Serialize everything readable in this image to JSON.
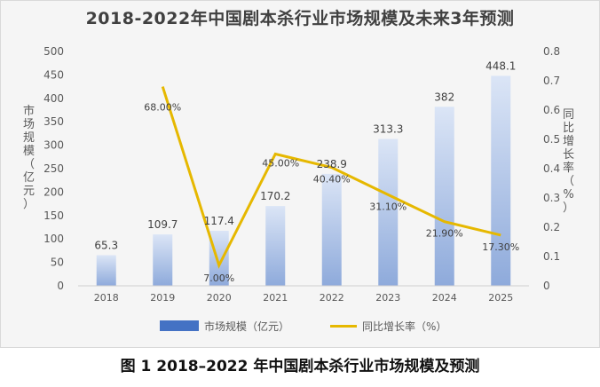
{
  "title": "2018-2022年中国剧本杀行业市场规模及未来3年预测",
  "caption": "图 1 2018–2022 年中国剧本杀行业市场规模及预测",
  "left_axis_label": "市场规模（亿元）",
  "right_axis_label": "同比增长率（%）",
  "legend": {
    "bar": "市场规模（亿元）",
    "line": "同比增长率（%）"
  },
  "colors": {
    "bar_top": "#dbe5f6",
    "bar_bottom": "#8eaadb",
    "line": "#e6b800",
    "legend_bar": "#4472c4"
  },
  "chart_data": {
    "type": "bar+line",
    "categories": [
      "2018",
      "2019",
      "2020",
      "2021",
      "2022",
      "2023",
      "2024",
      "2025"
    ],
    "series": [
      {
        "name": "市场规模（亿元）",
        "type": "bar",
        "axis": "left",
        "values": [
          65.3,
          109.7,
          117.4,
          170.2,
          238.9,
          313.3,
          382,
          448.1
        ],
        "labels": [
          "65.3",
          "109.7",
          "117.4",
          "170.2",
          "238.9",
          "313.3",
          "382",
          "448.1"
        ]
      },
      {
        "name": "同比增长率（%）",
        "type": "line",
        "axis": "right",
        "values": [
          null,
          0.68,
          0.07,
          0.45,
          0.404,
          0.311,
          0.219,
          0.173
        ],
        "labels": [
          "",
          "68.00%",
          "7.00%",
          "45.00%",
          "40.40%",
          "31.10%",
          "21.90%",
          "17.30%"
        ]
      }
    ],
    "y_left": {
      "min": 0,
      "max": 500,
      "step": 50,
      "ticks": [
        "0",
        "50",
        "100",
        "150",
        "200",
        "250",
        "300",
        "350",
        "400",
        "450",
        "500"
      ]
    },
    "y_right": {
      "min": 0,
      "max": 0.8,
      "step": 0.1,
      "ticks": [
        "0",
        "0.1",
        "0.2",
        "0.3",
        "0.4",
        "0.5",
        "0.6",
        "0.7",
        "0.8"
      ]
    },
    "grid": false,
    "legend_position": "bottom"
  }
}
